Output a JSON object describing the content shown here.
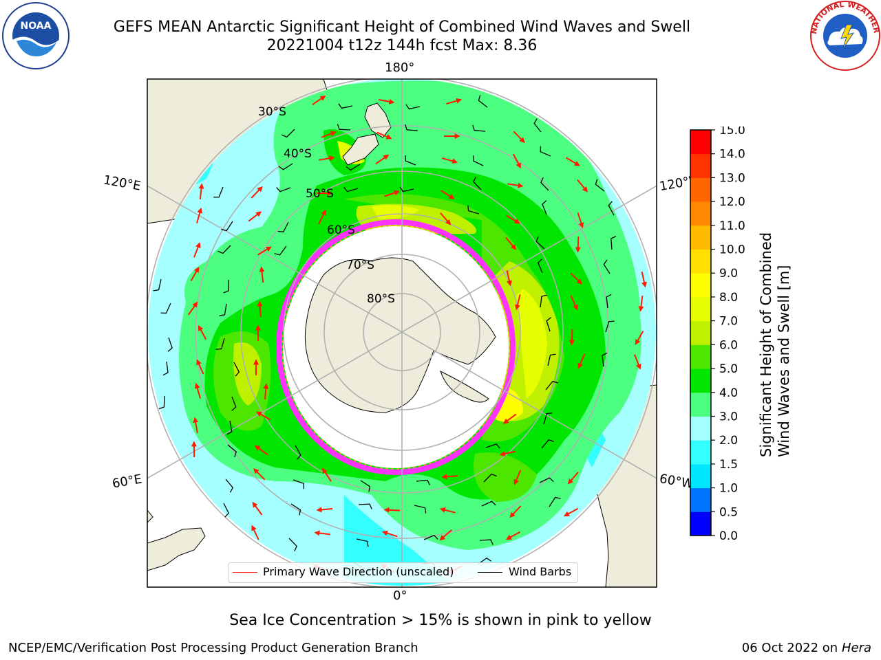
{
  "title": {
    "line1": "GEFS MEAN Antarctic Significant Height of Combined Wind Waves and Swell",
    "line2": "20221004 t12z 144h fcst   Max: 8.36"
  },
  "logos": {
    "left": {
      "icon": "noaa-logo",
      "text": "NOAA"
    },
    "right": {
      "icon": "national-weather-service-logo",
      "text": "NATIONAL WEATHER SERVICE"
    }
  },
  "map": {
    "projection": "south-polar-stereographic",
    "longitude_labels": {
      "top": "180°",
      "bottom": "0°",
      "upper_left": "120°E",
      "upper_right": "120°W",
      "lower_left": "60°E",
      "lower_right": "60°W"
    },
    "latitude_labels": [
      "30°S",
      "40°S",
      "50°S",
      "60°S",
      "70°S",
      "80°S"
    ],
    "colors": {
      "land": "#eeecda",
      "grid": "#b0b0b0",
      "wave_arrow": "#ff1a00",
      "wind_barb": "#000000",
      "ice_edge": [
        "#ff33ff",
        "#ff8800",
        "#ffcc33"
      ]
    }
  },
  "colorbar": {
    "label_line1": "Significant Height of Combined",
    "label_line2": "Wind Waves and Swell [m]",
    "ticks": [
      "0.0",
      "0.5",
      "1.0",
      "1.5",
      "2.0",
      "3.0",
      "4.0",
      "5.0",
      "6.0",
      "7.0",
      "8.0",
      "9.0",
      "10.0",
      "11.0",
      "12.0",
      "13.0",
      "14.0",
      "15.0"
    ],
    "colors": [
      "#0000ff",
      "#0073ff",
      "#00e6ff",
      "#33ffff",
      "#a6ffff",
      "#4dff80",
      "#00e600",
      "#4de600",
      "#bff000",
      "#e6ff00",
      "#ffff00",
      "#ffe000",
      "#ffbb00",
      "#ff8800",
      "#ff6600",
      "#ff3300",
      "#ff0000"
    ]
  },
  "legend": {
    "items": [
      {
        "label": "Primary Wave Direction (unscaled)",
        "color": "#ff1a00"
      },
      {
        "label": "Wind Barbs",
        "color": "#000000"
      }
    ]
  },
  "captions": {
    "sea_ice": "Sea Ice Concentration > 15% is shown in pink to yellow"
  },
  "footer": {
    "left": "NCEP/EMC/Verification Post Processing Product Generation Branch",
    "right_date": "06 Oct 2022 on ",
    "right_machine": "Hera"
  }
}
